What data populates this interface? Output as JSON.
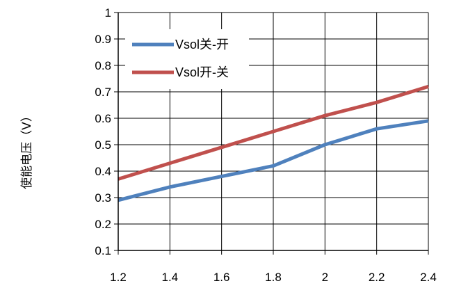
{
  "chart_data": {
    "type": "line",
    "title": "",
    "xlabel": "",
    "ylabel": "使能电压（V）",
    "xlim": [
      1.2,
      2.4
    ],
    "ylim": [
      0.1,
      1.0
    ],
    "x_ticks": [
      "1.2",
      "1.4",
      "1.6",
      "1.8",
      "2",
      "2.2",
      "2.4"
    ],
    "y_ticks": [
      "0.1",
      "0.2",
      "0.3",
      "0.4",
      "0.5",
      "0.6",
      "0.7",
      "0.8",
      "0.9",
      "1"
    ],
    "grid": true,
    "legend_position": "top-left",
    "x": [
      1.2,
      1.4,
      1.6,
      1.8,
      2.0,
      2.2,
      2.4
    ],
    "series": [
      {
        "name": "Vsol关-开",
        "color": "#4f81bd",
        "values": [
          0.29,
          0.34,
          0.38,
          0.42,
          0.5,
          0.56,
          0.59
        ]
      },
      {
        "name": "Vsol开-关",
        "color": "#c0504d",
        "values": [
          0.37,
          0.43,
          0.49,
          0.55,
          0.61,
          0.66,
          0.72
        ]
      }
    ]
  }
}
